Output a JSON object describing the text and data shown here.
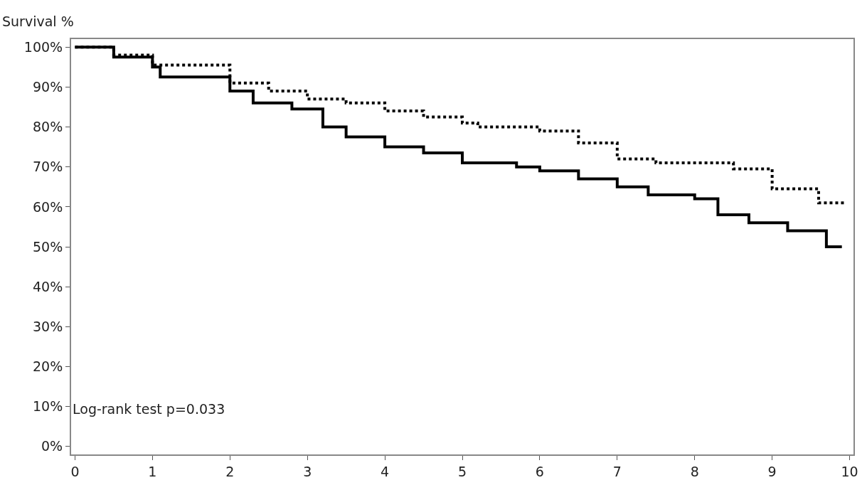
{
  "chart_data": {
    "type": "step",
    "ylabel": "Survival %",
    "annotations": [
      "Log-rank test p=0.033"
    ],
    "xlim": [
      -0.05,
      10.05
    ],
    "xticks": [
      0,
      1,
      2,
      3,
      4,
      5,
      6,
      7,
      8,
      9,
      10
    ],
    "ylim": [
      -2,
      102
    ],
    "yticks": [
      {
        "value": 0,
        "label": "0%"
      },
      {
        "value": 10,
        "label": "10%"
      },
      {
        "value": 20,
        "label": "20%"
      },
      {
        "value": 30,
        "label": "30%"
      },
      {
        "value": 40,
        "label": "40%"
      },
      {
        "value": 50,
        "label": "50%"
      },
      {
        "value": 60,
        "label": "60%"
      },
      {
        "value": 70,
        "label": "70%"
      },
      {
        "value": 80,
        "label": "80%"
      },
      {
        "value": 90,
        "label": "90%"
      },
      {
        "value": 100,
        "label": "100%"
      }
    ],
    "legend": false,
    "series": [
      {
        "color": "#000000",
        "line_style": "solid",
        "x": [
          0,
          0.5,
          1.0,
          1.1,
          2,
          2.3,
          2.8,
          3.2,
          3.5,
          4,
          4.5,
          5,
          5.7,
          6,
          6.5,
          7,
          7.4,
          8,
          8.3,
          8.7,
          9.2,
          9.7,
          9.9
        ],
        "values": [
          100,
          97.5,
          95,
          92.5,
          89,
          86,
          84.5,
          80,
          77.5,
          75,
          73.5,
          71,
          70,
          69,
          67,
          65,
          63,
          62,
          58,
          56,
          54,
          50,
          50
        ]
      },
      {
        "color": "#000000",
        "line_style": "dotted",
        "x": [
          0,
          0.5,
          1,
          2,
          2.5,
          3,
          3.5,
          4,
          4.5,
          5,
          5.2,
          6,
          6.5,
          7,
          7.5,
          8.5,
          9,
          9.6,
          9.95
        ],
        "values": [
          100,
          98,
          95.5,
          91,
          89,
          87,
          86,
          84,
          82.5,
          81,
          80,
          79,
          76,
          72,
          71,
          69.5,
          64.5,
          61,
          61
        ]
      }
    ]
  }
}
